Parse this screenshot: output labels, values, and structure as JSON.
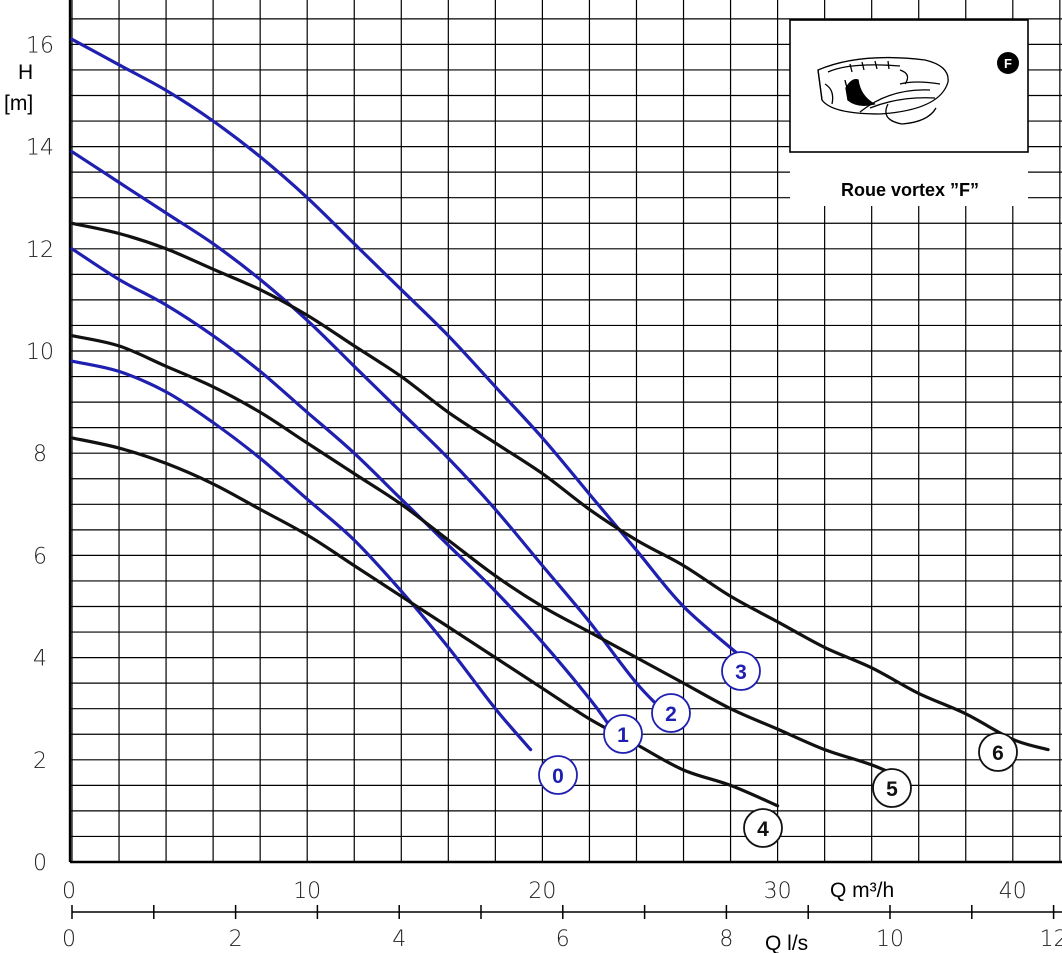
{
  "chart_data": {
    "type": "line",
    "title": "",
    "y_label_line1": "H",
    "y_label_line2": "[m]",
    "x_label": "Q m³/h",
    "x2_label": "Q l/s",
    "xlim": [
      0,
      42
    ],
    "ylim": [
      0,
      16.5
    ],
    "x2lim": [
      0,
      12
    ],
    "y_ticks": [
      "0",
      "2",
      "4",
      "6",
      "8",
      "10",
      "12",
      "14",
      "16"
    ],
    "x_ticks": [
      "0",
      "10",
      "20",
      "30",
      "40"
    ],
    "x2_ticks": [
      "0",
      "2",
      "4",
      "6",
      "8",
      "10",
      "12"
    ],
    "grid": true,
    "inset": {
      "title": "Roue vortex ”F”",
      "badge": "F"
    },
    "series": [
      {
        "name": "0",
        "color": "#1f1fb0",
        "x": [
          0,
          2,
          4,
          6,
          8,
          10,
          12,
          14,
          16,
          18,
          19.5
        ],
        "y": [
          9.8,
          9.6,
          9.2,
          8.6,
          7.9,
          7.1,
          6.3,
          5.3,
          4.2,
          3.0,
          2.2
        ]
      },
      {
        "name": "1",
        "color": "#1f1fb0",
        "x": [
          0,
          2,
          4,
          6,
          8,
          10,
          12,
          14,
          16,
          18,
          20,
          22,
          22.8
        ],
        "y": [
          12.0,
          11.4,
          10.9,
          10.3,
          9.6,
          8.8,
          8.0,
          7.1,
          6.2,
          5.3,
          4.3,
          3.2,
          2.7
        ]
      },
      {
        "name": "2",
        "color": "#1f1fb0",
        "x": [
          0,
          2,
          4,
          6,
          8,
          10,
          12,
          14,
          16,
          18,
          20,
          22,
          24,
          25.5
        ],
        "y": [
          13.9,
          13.3,
          12.7,
          12.1,
          11.4,
          10.6,
          9.7,
          8.8,
          7.9,
          6.9,
          5.8,
          4.7,
          3.5,
          2.8
        ]
      },
      {
        "name": "3",
        "color": "#1f1fb0",
        "x": [
          0,
          2,
          4,
          6,
          8,
          10,
          12,
          14,
          16,
          18,
          20,
          22,
          24,
          26,
          28.5
        ],
        "y": [
          16.1,
          15.6,
          15.1,
          14.5,
          13.8,
          13.0,
          12.1,
          11.2,
          10.3,
          9.3,
          8.3,
          7.2,
          6.1,
          5.0,
          4.0
        ]
      },
      {
        "name": "4",
        "color": "#111111",
        "x": [
          0,
          2,
          4,
          6,
          8,
          10,
          12,
          14,
          16,
          18,
          20,
          22,
          24,
          26,
          28,
          30
        ],
        "y": [
          8.3,
          8.1,
          7.8,
          7.4,
          6.9,
          6.4,
          5.8,
          5.2,
          4.6,
          4.0,
          3.4,
          2.8,
          2.3,
          1.8,
          1.5,
          1.1
        ]
      },
      {
        "name": "5",
        "color": "#111111",
        "x": [
          0,
          2,
          4,
          6,
          8,
          10,
          12,
          14,
          16,
          18,
          20,
          22,
          24,
          26,
          28,
          30,
          32,
          34,
          35.5
        ],
        "y": [
          10.3,
          10.1,
          9.7,
          9.3,
          8.8,
          8.2,
          7.6,
          7.0,
          6.3,
          5.6,
          5.0,
          4.5,
          4.0,
          3.5,
          3.0,
          2.6,
          2.2,
          1.9,
          1.6
        ]
      },
      {
        "name": "6",
        "color": "#111111",
        "x": [
          0,
          2,
          4,
          6,
          8,
          10,
          12,
          14,
          16,
          18,
          20,
          22,
          24,
          26,
          28,
          30,
          32,
          34,
          36,
          38,
          40,
          41.5
        ],
        "y": [
          12.5,
          12.3,
          12.0,
          11.6,
          11.2,
          10.7,
          10.1,
          9.5,
          8.8,
          8.2,
          7.6,
          6.9,
          6.3,
          5.8,
          5.2,
          4.7,
          4.2,
          3.8,
          3.3,
          2.9,
          2.4,
          2.2
        ]
      }
    ]
  }
}
